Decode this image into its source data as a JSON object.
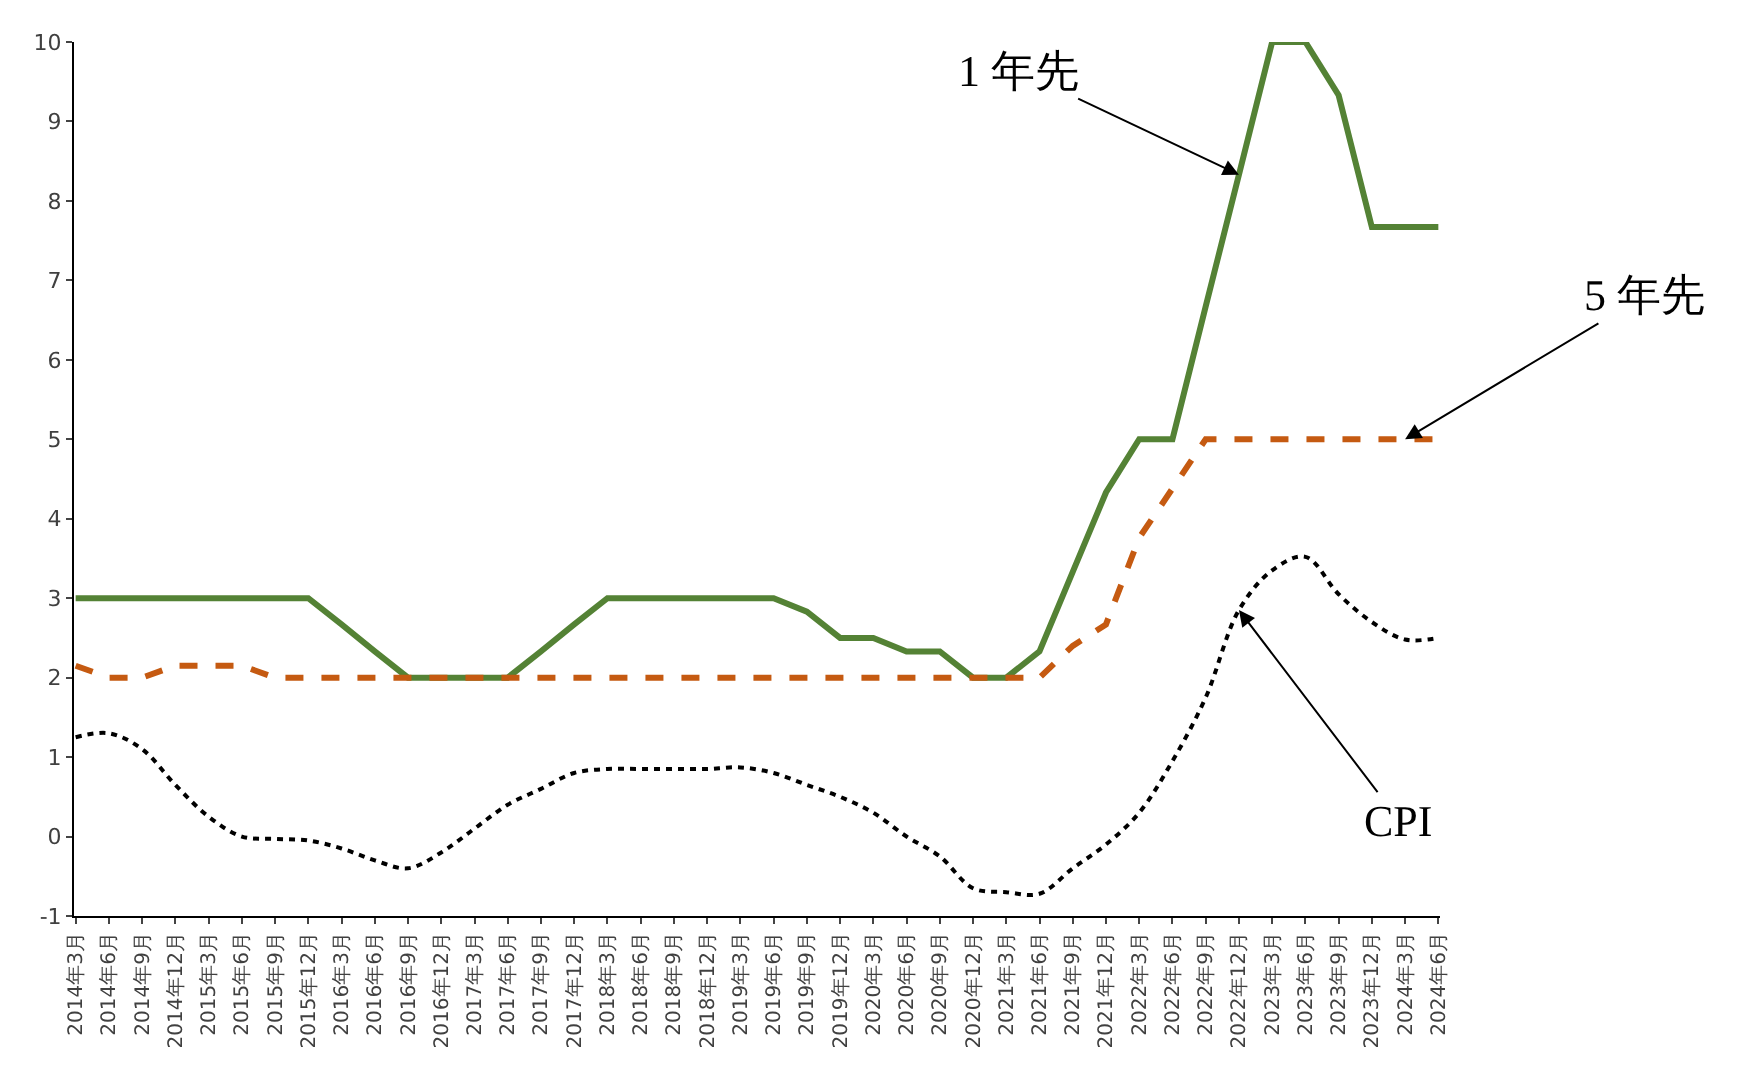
{
  "chart_data": {
    "type": "line",
    "categories": [
      "2014年3月",
      "2014年6月",
      "2014年9月",
      "2014年12月",
      "2015年3月",
      "2015年6月",
      "2015年9月",
      "2015年12月",
      "2016年3月",
      "2016年6月",
      "2016年9月",
      "2016年12月",
      "2017年3月",
      "2017年6月",
      "2017年9月",
      "2017年12月",
      "2018年3月",
      "2018年6月",
      "2018年9月",
      "2018年12月",
      "2019年3月",
      "2019年6月",
      "2019年9月",
      "2019年12月",
      "2020年3月",
      "2020年6月",
      "2020年9月",
      "2020年12月",
      "2021年3月",
      "2021年6月",
      "2021年9月",
      "2021年12月",
      "2022年3月",
      "2022年6月",
      "2022年9月",
      "2022年12月",
      "2023年3月",
      "2023年6月",
      "2023年9月",
      "2023年12月",
      "2024年3月",
      "2024年6月"
    ],
    "series": [
      {
        "color": "#548235",
        "line_style": "solid",
        "values": [
          3,
          3,
          3,
          3,
          3,
          3,
          3,
          3,
          2.67,
          2.33,
          2,
          2,
          2,
          2,
          2.33,
          2.67,
          3,
          3,
          3,
          3,
          3,
          3,
          2.83,
          2.5,
          2.5,
          2.33,
          2.33,
          2,
          2,
          2.33,
          3.33,
          4.33,
          5,
          5,
          6.67,
          8.33,
          10,
          10,
          9.33,
          7.67,
          7.67,
          7.67
        ]
      },
      {
        "color": "#c55a11",
        "line_style": "dashed",
        "values": [
          2.15,
          2,
          2,
          2.15,
          2.15,
          2.15,
          2,
          2,
          2,
          2,
          2,
          2,
          2,
          2,
          2,
          2,
          2,
          2,
          2,
          2,
          2,
          2,
          2,
          2,
          2,
          2,
          2,
          2,
          2,
          2,
          2.4,
          2.67,
          3.76,
          4.38,
          5,
          5,
          5,
          5,
          5,
          5,
          5,
          5
        ]
      },
      {
        "color": "#000000",
        "line_style": "dotted",
        "values": [
          1.25,
          1.3,
          1.1,
          0.65,
          0.25,
          0,
          -0.03,
          -0.05,
          -0.15,
          -0.3,
          -0.4,
          -0.2,
          0.1,
          0.4,
          0.6,
          0.8,
          0.85,
          0.85,
          0.85,
          0.85,
          0.87,
          0.8,
          0.65,
          0.5,
          0.3,
          0,
          -0.25,
          -0.65,
          -0.7,
          -0.72,
          -0.4,
          -0.1,
          0.3,
          0.95,
          1.75,
          2.85,
          3.35,
          3.52,
          3.05,
          2.7,
          2.48,
          2.5
        ]
      }
    ],
    "ylim": [
      -1,
      10
    ],
    "yticks": [
      -1,
      0,
      1,
      2,
      3,
      4,
      5,
      6,
      7,
      8,
      9,
      10
    ],
    "marker": "none",
    "annotations": [
      {
        "text": "1 年先",
        "x": "2022年12月",
        "y": 8.33
      },
      {
        "text": "5 年先",
        "x": "2024年3月",
        "y": 5
      },
      {
        "text": "CPI",
        "x": "2022年12月",
        "y": 2.85
      }
    ]
  }
}
